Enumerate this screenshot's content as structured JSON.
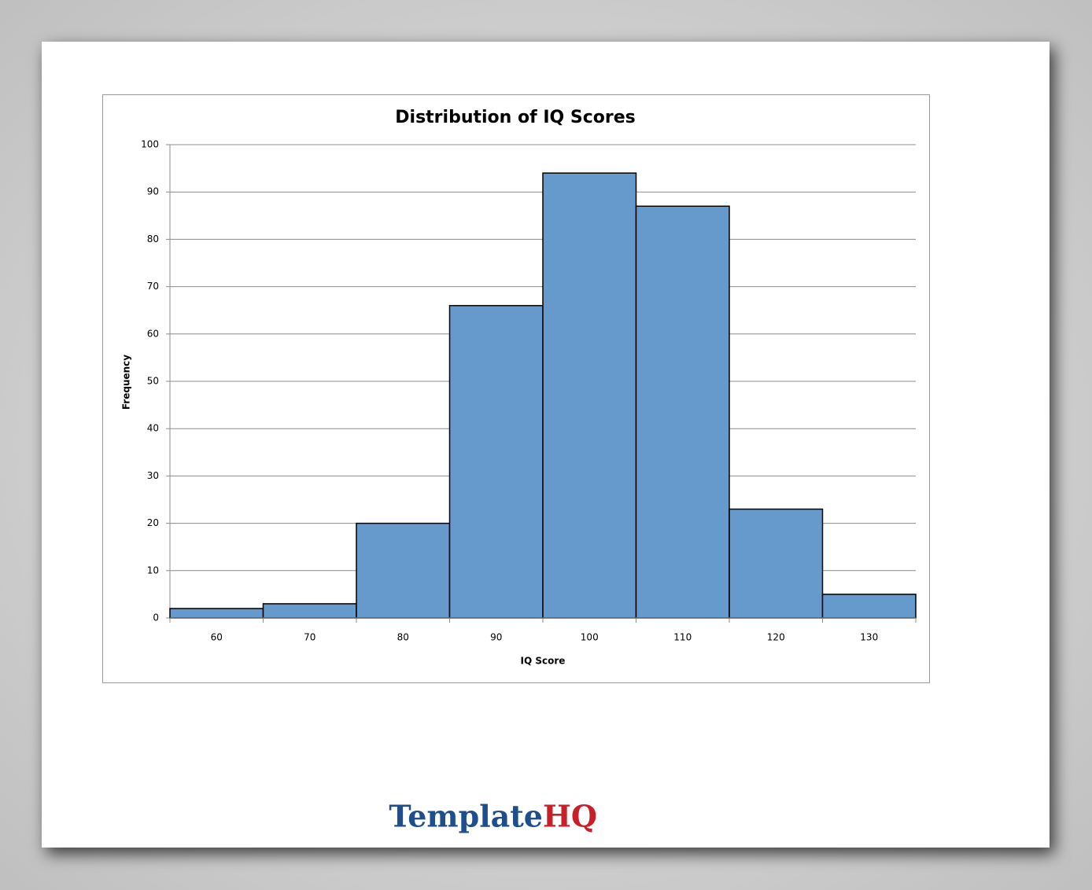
{
  "chart_data": {
    "type": "bar",
    "title": "Distribution of IQ Scores",
    "x_label": "IQ Score",
    "y_label": "Frequency",
    "categories": [
      "60",
      "70",
      "80",
      "90",
      "100",
      "110",
      "120",
      "130"
    ],
    "values": [
      2,
      3,
      20,
      66,
      94,
      87,
      23,
      5
    ],
    "color": "#6699cc",
    "ylim": [
      0,
      100
    ],
    "yticks": [
      0,
      10,
      20,
      30,
      40,
      50,
      60,
      70,
      80,
      90,
      100
    ],
    "grid": true
  },
  "watermark": {
    "first": "Template",
    "second": "HQ"
  }
}
